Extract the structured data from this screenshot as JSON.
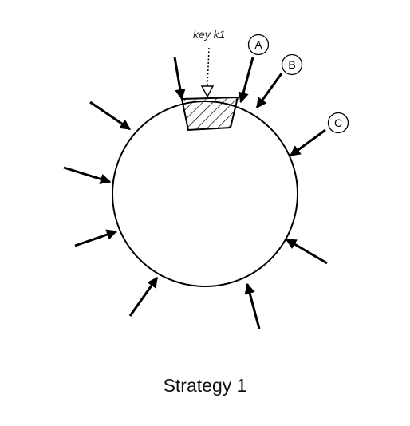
{
  "diagram": {
    "key_label": "key k1",
    "node_labels": [
      "A",
      "B",
      "C"
    ],
    "caption": "Strategy 1",
    "colors": {
      "line": "#000000",
      "background": "#ffffff"
    }
  }
}
